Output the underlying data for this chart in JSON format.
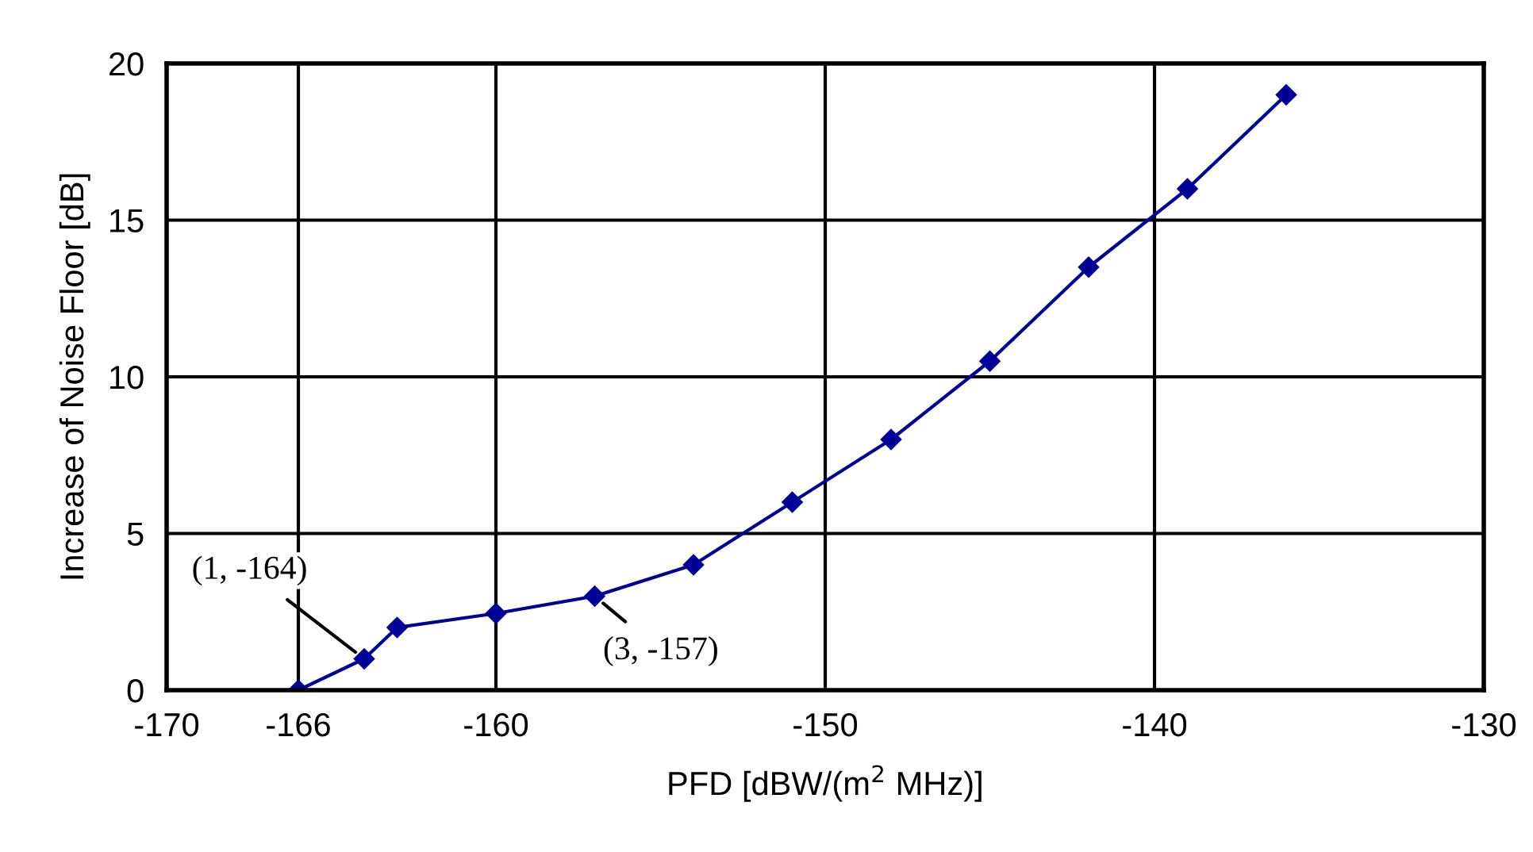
{
  "chart_data": {
    "type": "line",
    "xlabel": "PFD [dBW/(m$^{2}$ MHz)]",
    "ylabel": "Increase of Noise Floor [dB]",
    "x": [
      -166,
      -164,
      -163,
      -160,
      -157,
      -154,
      -151,
      -148,
      -145,
      -142,
      -139,
      -136
    ],
    "series": [
      {
        "color": "#000099",
        "values": [
          0,
          1,
          2,
          2.45,
          3,
          4,
          6,
          8,
          10.5,
          13.5,
          16,
          19
        ]
      }
    ],
    "xlim": [
      -170,
      -130
    ],
    "xticks": [
      -170,
      -166,
      -160,
      -150,
      -140,
      -130
    ],
    "ylim": [
      0,
      20
    ],
    "yticks": [
      0,
      5,
      10,
      15,
      20
    ],
    "grid": true,
    "marker": "diamond",
    "line_style": "solid",
    "legend": false,
    "annotations": [
      {
        "text": "(1, -164)",
        "x": -164,
        "y": 1
      },
      {
        "text": "(3, -157)",
        "x": -157,
        "y": 3
      }
    ]
  }
}
